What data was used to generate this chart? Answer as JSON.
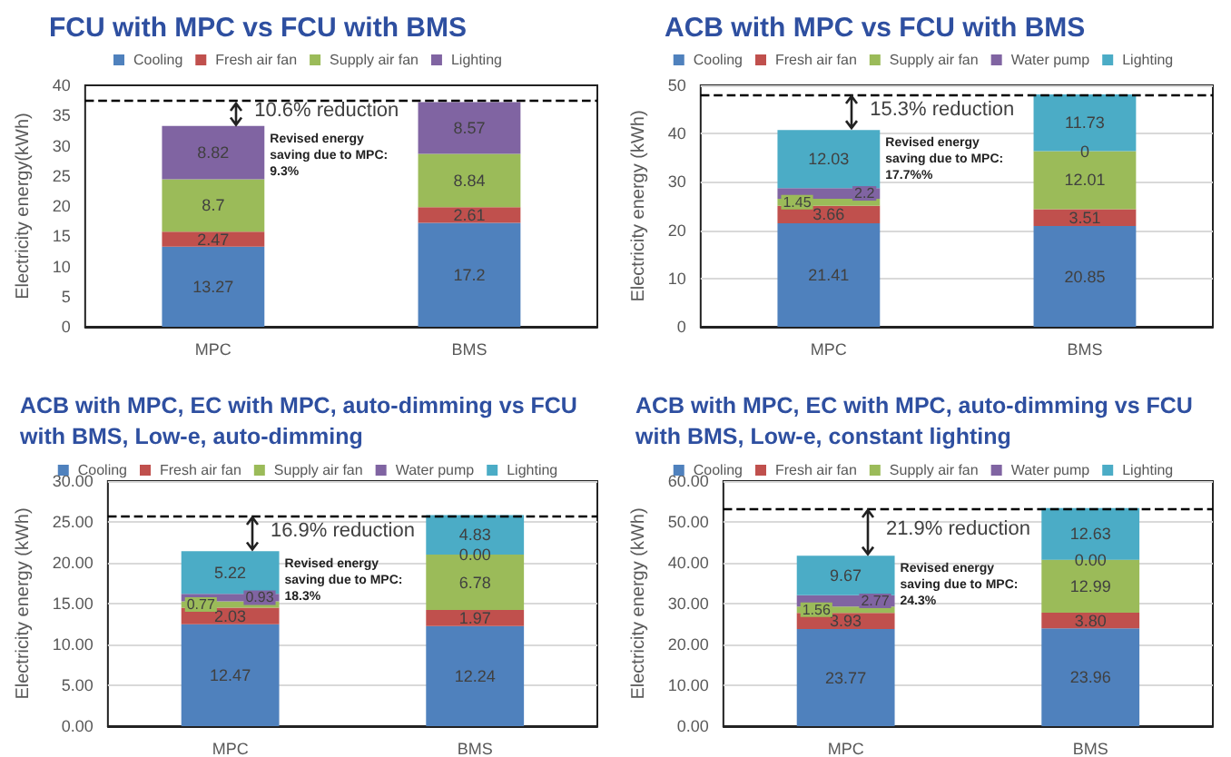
{
  "chart_data": [
    {
      "type": "bar",
      "title": "FCU with MPC vs FCU with BMS",
      "ylabel": "Electricity energy(kWh)",
      "categories": [
        "MPC",
        "BMS"
      ],
      "stacked": true,
      "data_labels": true,
      "legend": "top",
      "grid": false,
      "ylim": [
        0,
        40
      ],
      "yticks": [
        0,
        5,
        10,
        15,
        20,
        25,
        30,
        35,
        40
      ],
      "series": [
        {
          "name": "Cooling",
          "color": "#4f81bd",
          "values": [
            13.27,
            17.2
          ]
        },
        {
          "name": "Fresh air fan",
          "color": "#c0504d",
          "values": [
            2.47,
            2.61
          ]
        },
        {
          "name": "Supply air fan",
          "color": "#9bbb59",
          "values": [
            8.7,
            8.84
          ]
        },
        {
          "name": "Lighting",
          "color": "#8064a2",
          "values": [
            8.82,
            8.57
          ]
        }
      ],
      "ref_lines": [
        {
          "axis": "y",
          "value": 37.4,
          "color": "#000000",
          "line_style": "dashed"
        }
      ],
      "annotations": [
        "10.6% reduction",
        "Revised energy saving due to MPC: 9.3%"
      ]
    },
    {
      "type": "bar",
      "title": "ACB with MPC vs FCU with BMS",
      "ylabel": "Electricity energy (kWh)",
      "categories": [
        "MPC",
        "BMS"
      ],
      "stacked": true,
      "data_labels": true,
      "legend": "top",
      "grid": "y",
      "ylim": [
        0,
        50
      ],
      "yticks": [
        0,
        10,
        20,
        30,
        40,
        50
      ],
      "series": [
        {
          "name": "Cooling",
          "color": "#4f81bd",
          "values": [
            21.41,
            20.85
          ]
        },
        {
          "name": "Fresh air fan",
          "color": "#c0504d",
          "values": [
            3.66,
            3.51
          ]
        },
        {
          "name": "Supply air fan",
          "color": "#9bbb59",
          "values": [
            1.45,
            12.01
          ]
        },
        {
          "name": "Water pump",
          "color": "#8064a2",
          "values": [
            2.2,
            0
          ]
        },
        {
          "name": "Lighting",
          "color": "#4bacc6",
          "values": [
            12.03,
            11.73
          ]
        }
      ],
      "ref_lines": [
        {
          "axis": "y",
          "value": 48.1,
          "color": "#000000",
          "line_style": "dashed"
        }
      ],
      "annotations": [
        "15.3% reduction",
        "Revised energy saving due to MPC: 17.7%%"
      ]
    },
    {
      "type": "bar",
      "title": "ACB with MPC, EC with MPC, auto-dimming vs FCU with BMS, Low-e, auto-dimming",
      "ylabel": "Electricity energy (kWh)",
      "categories": [
        "MPC",
        "BMS"
      ],
      "stacked": true,
      "legend": "top",
      "grid": "y",
      "ylim": [
        0,
        30
      ],
      "yticks": [
        {
          "value": 0,
          "label": "0.00"
        },
        {
          "value": 5,
          "label": "5.00"
        },
        {
          "value": 10,
          "label": "10.00"
        },
        {
          "value": 15,
          "label": "15.00"
        },
        {
          "value": 20,
          "label": "20.00"
        },
        {
          "value": 25,
          "label": "25.00"
        },
        {
          "value": 30,
          "label": "30.00"
        }
      ],
      "series": [
        {
          "name": "Cooling",
          "color": "#4f81bd",
          "values": [
            12.47,
            12.24
          ],
          "value_labels": [
            "12.47",
            "12.24"
          ]
        },
        {
          "name": "Fresh air fan",
          "color": "#c0504d",
          "values": [
            2.03,
            1.97
          ],
          "value_labels": [
            "2.03",
            "1.97"
          ]
        },
        {
          "name": "Supply air fan",
          "color": "#9bbb59",
          "values": [
            0.77,
            6.78
          ],
          "value_labels": [
            "0.77",
            "6.78"
          ]
        },
        {
          "name": "Water pump",
          "color": "#8064a2",
          "values": [
            0.93,
            0
          ],
          "value_labels": [
            "0.93",
            "0.00"
          ]
        },
        {
          "name": "Lighting",
          "color": "#4bacc6",
          "values": [
            5.22,
            4.83
          ],
          "value_labels": [
            "5.22",
            "4.83"
          ]
        }
      ],
      "ref_lines": [
        {
          "axis": "y",
          "value": 25.8,
          "color": "#000000",
          "line_style": "dashed"
        }
      ],
      "annotations": [
        "16.9% reduction",
        "Revised energy saving due to MPC: 18.3%"
      ]
    },
    {
      "type": "bar",
      "title": "ACB with MPC, EC with MPC, auto-dimming vs FCU with BMS, Low-e, constant lighting",
      "ylabel": "Electricity energy (kWh)",
      "categories": [
        "MPC",
        "BMS"
      ],
      "stacked": true,
      "legend": "top",
      "grid": "y",
      "ylim": [
        0,
        60
      ],
      "yticks": [
        {
          "value": 0,
          "label": "0.00"
        },
        {
          "value": 10,
          "label": "10.00"
        },
        {
          "value": 20,
          "label": "20.00"
        },
        {
          "value": 30,
          "label": "30.00"
        },
        {
          "value": 40,
          "label": "40.00"
        },
        {
          "value": 50,
          "label": "50.00"
        },
        {
          "value": 60,
          "label": "60.00"
        }
      ],
      "series": [
        {
          "name": "Cooling",
          "color": "#4f81bd",
          "values": [
            23.77,
            23.96
          ],
          "value_labels": [
            "23.77",
            "23.96"
          ]
        },
        {
          "name": "Fresh air fan",
          "color": "#c0504d",
          "values": [
            3.93,
            3.8
          ],
          "value_labels": [
            "3.93",
            "3.80"
          ]
        },
        {
          "name": "Supply air fan",
          "color": "#9bbb59",
          "values": [
            1.56,
            12.99
          ],
          "value_labels": [
            "1.56",
            "12.99"
          ]
        },
        {
          "name": "Water pump",
          "color": "#8064a2",
          "values": [
            2.77,
            0
          ],
          "value_labels": [
            "2.77",
            "0.00"
          ]
        },
        {
          "name": "Lighting",
          "color": "#4bacc6",
          "values": [
            9.67,
            12.63
          ],
          "value_labels": [
            "9.67",
            "12.63"
          ]
        }
      ],
      "ref_lines": [
        {
          "axis": "y",
          "value": 53.4,
          "color": "#000000",
          "line_style": "dashed"
        }
      ],
      "annotations": [
        "21.9% reduction",
        "Revised energy saving due to MPC: 24.3%"
      ]
    }
  ]
}
